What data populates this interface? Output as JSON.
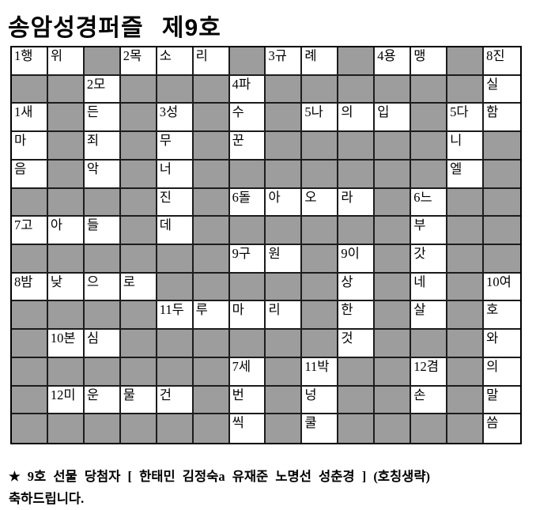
{
  "title": "송암성경퍼즐 제9호",
  "colors": {
    "background": "#ffffff",
    "blocked_cell": "#9d9d9d",
    "grid_line": "#1c1c1c",
    "text": "#000000"
  },
  "grid": {
    "columns": 14,
    "rows": 14,
    "blocked_marker": null,
    "cells": [
      [
        "1행",
        "위",
        null,
        "2목",
        "소",
        "리",
        null,
        "3규",
        "례",
        null,
        "4용",
        "맹",
        null,
        "8진"
      ],
      [
        null,
        null,
        "2모",
        null,
        null,
        null,
        "4파",
        null,
        null,
        null,
        null,
        null,
        null,
        "실"
      ],
      [
        "1새",
        null,
        "든",
        null,
        "3성",
        null,
        "수",
        null,
        "5나",
        "의",
        "입",
        null,
        "5다",
        "함"
      ],
      [
        "마",
        null,
        "죄",
        null,
        "무",
        null,
        "꾼",
        null,
        null,
        null,
        null,
        null,
        "니",
        null
      ],
      [
        "음",
        null,
        "악",
        null,
        "너",
        null,
        null,
        null,
        null,
        null,
        null,
        null,
        "엘",
        null
      ],
      [
        null,
        null,
        null,
        null,
        "진",
        null,
        "6돌",
        "아",
        "오",
        "라",
        null,
        "6느",
        null,
        null
      ],
      [
        "7고",
        "아",
        "들",
        null,
        "데",
        null,
        null,
        null,
        null,
        null,
        null,
        "부",
        null,
        null
      ],
      [
        null,
        null,
        null,
        null,
        null,
        null,
        "9구",
        "원",
        null,
        "9이",
        null,
        "갓",
        null,
        null
      ],
      [
        "8밤",
        "낮",
        "으",
        "로",
        null,
        null,
        null,
        null,
        null,
        "상",
        null,
        "네",
        null,
        "10여"
      ],
      [
        null,
        null,
        null,
        null,
        "11두",
        "루",
        "마",
        "리",
        null,
        "한",
        null,
        "살",
        null,
        "호"
      ],
      [
        null,
        "10본",
        "심",
        null,
        null,
        null,
        null,
        null,
        null,
        "것",
        null,
        null,
        null,
        "와"
      ],
      [
        null,
        null,
        null,
        null,
        null,
        null,
        "7세",
        null,
        "11박",
        null,
        null,
        "12겸",
        null,
        "의"
      ],
      [
        null,
        "12미",
        "운",
        "물",
        "건",
        null,
        "번",
        null,
        "넝",
        null,
        null,
        "손",
        null,
        "말"
      ],
      [
        null,
        null,
        null,
        null,
        null,
        null,
        "씩",
        null,
        "쿨",
        null,
        null,
        null,
        null,
        "씀"
      ]
    ]
  },
  "footer": {
    "star": "★",
    "winners_line": "9호 선물 당첨자 [ 한태민 김정숙a 유재준 노명선 성춘경 ] (호칭생략)",
    "congrats_line": "축하드립니다."
  }
}
